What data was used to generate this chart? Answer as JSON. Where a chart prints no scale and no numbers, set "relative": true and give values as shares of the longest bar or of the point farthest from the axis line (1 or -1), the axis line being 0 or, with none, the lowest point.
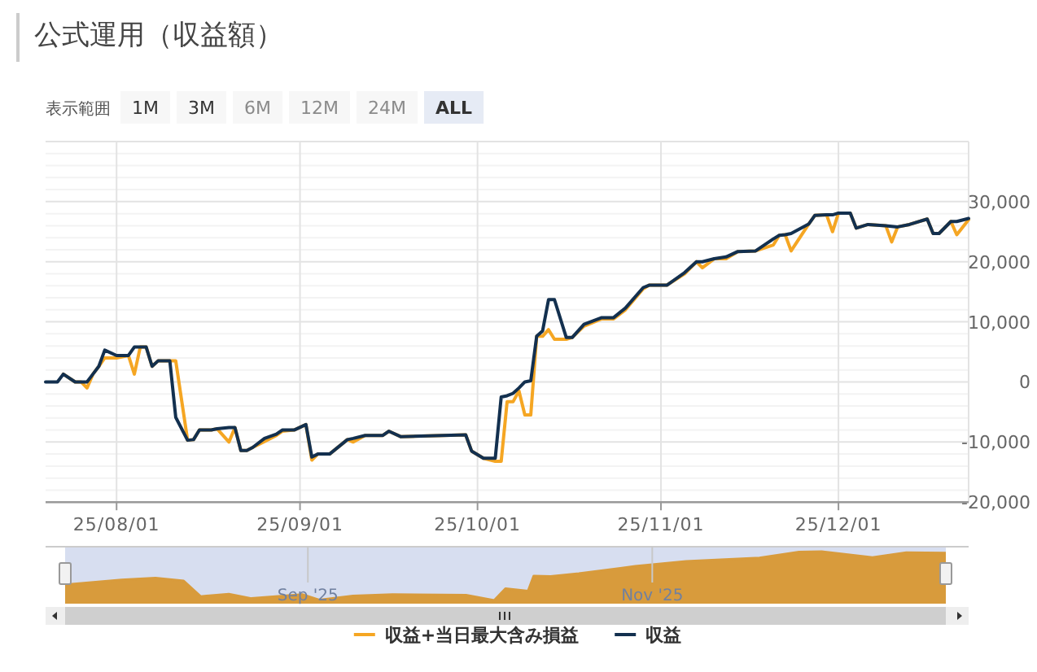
{
  "chart_data": [
    {
      "type": "line",
      "title": "公式運用（収益額）",
      "annotations": [
        "表示範囲",
        "1M",
        "3M",
        "6M",
        "12M",
        "24M",
        "ALL"
      ],
      "x": [
        "2025-07-20",
        "2025-07-22",
        "2025-07-23",
        "2025-07-25",
        "2025-07-26",
        "2025-07-27",
        "2025-07-28",
        "2025-07-29",
        "2025-07-30",
        "2025-08-01",
        "2025-08-03",
        "2025-08-04",
        "2025-08-05",
        "2025-08-06",
        "2025-08-07",
        "2025-08-08",
        "2025-08-10",
        "2025-08-11",
        "2025-08-13",
        "2025-08-14",
        "2025-08-15",
        "2025-08-17",
        "2025-08-18",
        "2025-08-20",
        "2025-08-21",
        "2025-08-22",
        "2025-08-23",
        "2025-08-24",
        "2025-08-26",
        "2025-08-28",
        "2025-08-29",
        "2025-08-31",
        "2025-09-02",
        "2025-09-03",
        "2025-09-04",
        "2025-09-06",
        "2025-09-09",
        "2025-09-10",
        "2025-09-12",
        "2025-09-15",
        "2025-09-16",
        "2025-09-18",
        "2025-09-29",
        "2025-09-30",
        "2025-10-02",
        "2025-10-04",
        "2025-10-05",
        "2025-10-06",
        "2025-10-07",
        "2025-10-08",
        "2025-10-09",
        "2025-10-10",
        "2025-10-11",
        "2025-10-12",
        "2025-10-13",
        "2025-10-14",
        "2025-10-16",
        "2025-10-17",
        "2025-10-19",
        "2025-10-22",
        "2025-10-24",
        "2025-10-26",
        "2025-10-29",
        "2025-10-30",
        "2025-11-02",
        "2025-11-05",
        "2025-11-07",
        "2025-11-08",
        "2025-11-10",
        "2025-11-12",
        "2025-11-14",
        "2025-11-17",
        "2025-11-20",
        "2025-11-21",
        "2025-11-22",
        "2025-11-23",
        "2025-11-26",
        "2025-11-27",
        "2025-11-29",
        "2025-11-30",
        "2025-12-01",
        "2025-12-03",
        "2025-12-04",
        "2025-12-06",
        "2025-12-09",
        "2025-12-10",
        "2025-12-11",
        "2025-12-13",
        "2025-12-16",
        "2025-12-17",
        "2025-12-18",
        "2025-12-20",
        "2025-12-21",
        "2025-12-23"
      ],
      "series": [
        {
          "name": "収益+当日最大含み損益",
          "color": "#f5a623",
          "values": [
            null,
            null,
            1300,
            0,
            0,
            -1000,
            1300,
            2600,
            4000,
            4000,
            4400,
            1300,
            5800,
            5800,
            2600,
            3500,
            3500,
            3500,
            -9700,
            -9600,
            -8000,
            -8000,
            -7800,
            -10000,
            -7600,
            -11400,
            -11400,
            -10900,
            -9900,
            -8900,
            -8200,
            -8000,
            -7100,
            -13000,
            -12000,
            -12000,
            -9600,
            -10000,
            -8900,
            -8900,
            -8200,
            -9100,
            -8800,
            -11500,
            -12700,
            -13200,
            -13200,
            -3300,
            -3300,
            -1500,
            -5500,
            -5500,
            7600,
            7600,
            8700,
            7100,
            7100,
            7400,
            9300,
            10500,
            10500,
            12000,
            15500,
            16100,
            16100,
            18000,
            20000,
            19000,
            20500,
            20500,
            21700,
            21800,
            22800,
            24400,
            24500,
            21800,
            26300,
            27700,
            27800,
            25000,
            28100,
            28100,
            25600,
            26200,
            26000,
            23300,
            25800,
            26200,
            27100,
            24700,
            24700,
            26700,
            24500,
            27000
          ]
        },
        {
          "name": "収益",
          "color": "#13304f",
          "values": [
            0,
            0,
            1300,
            0,
            0,
            0,
            1300,
            2600,
            5300,
            4400,
            4400,
            5800,
            5800,
            5800,
            2600,
            3500,
            3500,
            -5900,
            -9700,
            -9600,
            -8000,
            -8000,
            -7800,
            -7600,
            -7600,
            -11400,
            -11400,
            -10900,
            -9400,
            -8700,
            -8000,
            -8000,
            -7100,
            -12500,
            -12000,
            -12000,
            -9600,
            -9400,
            -8900,
            -8900,
            -8200,
            -9100,
            -8800,
            -11500,
            -12700,
            -12700,
            -2500,
            -2300,
            -1900,
            -1000,
            0,
            200,
            7600,
            8500,
            13700,
            13700,
            7400,
            7400,
            9600,
            10700,
            10700,
            12300,
            15700,
            16100,
            16100,
            18200,
            20000,
            20000,
            20500,
            20800,
            21700,
            21800,
            23800,
            24400,
            24500,
            24700,
            26300,
            27700,
            27800,
            27800,
            28100,
            28100,
            25600,
            26200,
            26000,
            25900,
            25800,
            26200,
            27100,
            24700,
            24700,
            26700,
            26700,
            27200
          ]
        }
      ],
      "xlim": [
        "2025-07-20",
        "2025-12-23"
      ],
      "xticks": [
        {
          "value": "2025-08-01",
          "label": "25/08/01"
        },
        {
          "value": "2025-09-01",
          "label": "25/09/01"
        },
        {
          "value": "2025-10-01",
          "label": "25/10/01"
        },
        {
          "value": "2025-11-01",
          "label": "25/11/01"
        },
        {
          "value": "2025-12-01",
          "label": "25/12/01"
        }
      ],
      "ylim": [
        -20000,
        40000
      ],
      "yticks": [
        {
          "value": -20000,
          "label": "-20,000"
        },
        {
          "value": -18000,
          "label": null
        },
        {
          "value": -16000,
          "label": null
        },
        {
          "value": -14000,
          "label": null
        },
        {
          "value": -12000,
          "label": null
        },
        {
          "value": -10000,
          "label": "-10,000"
        },
        {
          "value": -8000,
          "label": null
        },
        {
          "value": -6000,
          "label": null
        },
        {
          "value": -4000,
          "label": null
        },
        {
          "value": -2000,
          "label": null
        },
        0,
        {
          "value": 2000,
          "label": null
        },
        {
          "value": 4000,
          "label": null
        },
        {
          "value": 6000,
          "label": null
        },
        {
          "value": 8000,
          "label": null
        },
        {
          "value": 10000,
          "label": "10,000"
        },
        {
          "value": 12000,
          "label": null
        },
        {
          "value": 14000,
          "label": null
        },
        {
          "value": 16000,
          "label": null
        },
        {
          "value": 18000,
          "label": null
        },
        {
          "value": 20000,
          "label": "20,000"
        },
        {
          "value": 22000,
          "label": null
        },
        {
          "value": 24000,
          "label": null
        },
        {
          "value": 26000,
          "label": null
        },
        {
          "value": 28000,
          "label": null
        },
        {
          "value": 30000,
          "label": "30,000"
        },
        {
          "value": 32000,
          "label": null
        },
        {
          "value": 34000,
          "label": null
        },
        {
          "value": 36000,
          "label": null
        },
        {
          "value": 38000,
          "label": null
        }
      ],
      "grid": true,
      "legend": "bottom"
    },
    {
      "type": "area",
      "relative": true,
      "color": "#d89b3c",
      "x": [
        "2025-07-20",
        "2025-07-30",
        "2025-08-05",
        "2025-08-10",
        "2025-08-13",
        "2025-08-18",
        "2025-08-22",
        "2025-08-31",
        "2025-09-03",
        "2025-09-09",
        "2025-09-16",
        "2025-09-29",
        "2025-10-04",
        "2025-10-06",
        "2025-10-10",
        "2025-10-11",
        "2025-10-14",
        "2025-10-19",
        "2025-10-29",
        "2025-11-07",
        "2025-11-20",
        "2025-11-27",
        "2025-12-01",
        "2025-12-10",
        "2025-12-16",
        "2025-12-23"
      ],
      "values": [
        0.32,
        0.42,
        0.46,
        0.4,
        0.08,
        0.13,
        0.04,
        0.12,
        0.01,
        0.09,
        0.12,
        0.11,
        0,
        0.24,
        0.19,
        0.5,
        0.49,
        0.55,
        0.7,
        0.8,
        0.87,
        0.99,
        1,
        0.88,
        0.98,
        0.97
      ],
      "xlim": [
        "2025-07-20",
        "2025-12-23"
      ],
      "xticks": [
        {
          "value": "2025-09-01",
          "label": "Sep '25"
        },
        {
          "value": "2025-11-01",
          "label": "Nov '25"
        }
      ],
      "grid": "x",
      "tick_labels": "x"
    }
  ]
}
